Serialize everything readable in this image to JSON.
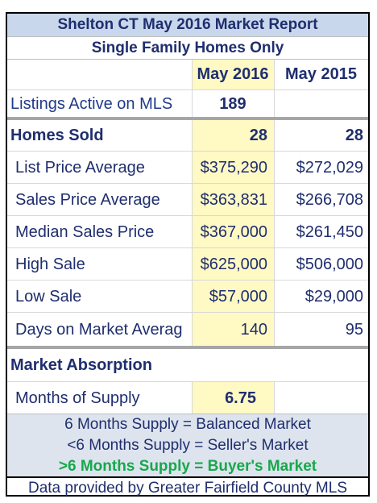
{
  "title": "Shelton CT May 2016 Market Report",
  "subtitle": "Single Family Homes Only",
  "columns": {
    "current": "May 2016",
    "prior": "May 2015"
  },
  "listings_active": {
    "label": "Listings Active on MLS",
    "current": "189",
    "prior": ""
  },
  "homes_sold": {
    "label": "Homes Sold",
    "current": "28",
    "prior": "28"
  },
  "rows": [
    {
      "label": "List Price Average",
      "current": "$375,290",
      "prior": "$272,029"
    },
    {
      "label": "Sales Price Average",
      "current": "$363,831",
      "prior": "$266,708"
    },
    {
      "label": "Median Sales Price",
      "current": "$367,000",
      "prior": "$261,450"
    },
    {
      "label": "High Sale",
      "current": "$625,000",
      "prior": "$506,000"
    },
    {
      "label": "Low Sale",
      "current": "$57,000",
      "prior": "$29,000"
    },
    {
      "label": "Days on Market Averag",
      "current": "140",
      "prior": "95"
    }
  ],
  "absorption": {
    "label": "Market Absorption"
  },
  "months_supply": {
    "label": "Months of Supply",
    "current": "6.75",
    "prior": ""
  },
  "notes": [
    {
      "text": "6 Months Supply = Balanced Market"
    },
    {
      "text": "<6 Months Supply = Seller's Market"
    },
    {
      "text": ">6 Months Supply = Buyer's Market"
    }
  ],
  "footer": "Data provided by Greater Fairfield County MLS",
  "colors": {
    "title_bg": "#c9d7ec",
    "highlight": "#fff9c4",
    "buyer_green": "#17a84b",
    "navy_text": "#1f2e6e"
  }
}
